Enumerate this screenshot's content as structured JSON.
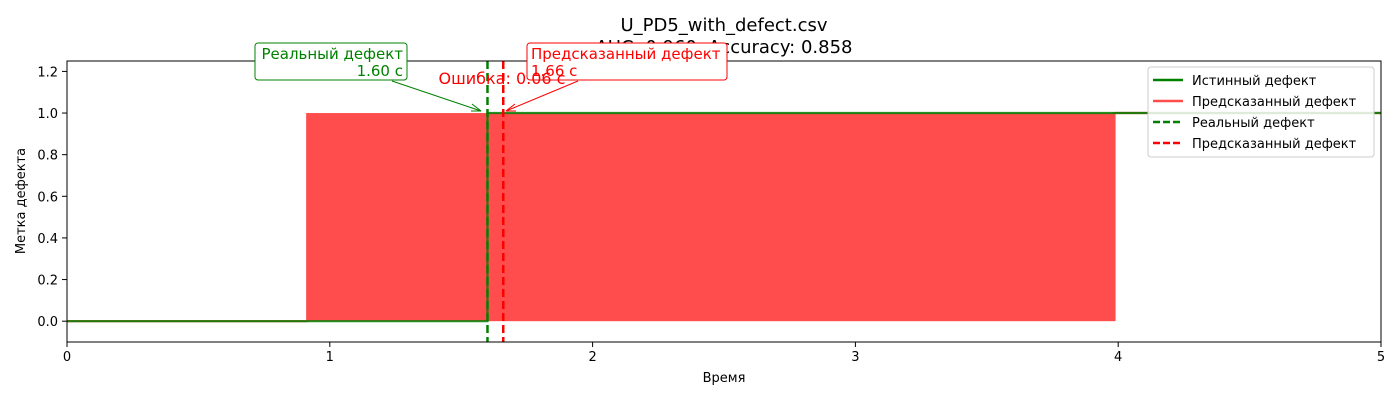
{
  "chart_data": {
    "type": "line",
    "title": "U_PD5_with_defect.csv",
    "subtitle": "AUC: 0.960, Accuracy: 0.858",
    "xlabel": "Время",
    "ylabel": "Метка дефекта",
    "xlim": [
      0,
      5
    ],
    "ylim": [
      -0.1,
      1.25
    ],
    "xticks": [
      0,
      1,
      2,
      3,
      4,
      5
    ],
    "xtick_labels": [
      "0",
      "1",
      "2",
      "3",
      "4",
      "5"
    ],
    "yticks": [
      0.0,
      0.2,
      0.4,
      0.6,
      0.8,
      1.0,
      1.2
    ],
    "ytick_labels": [
      "0.0",
      "0.2",
      "0.4",
      "0.6",
      "0.8",
      "1.0",
      "1.2"
    ],
    "grid": false,
    "legend_position": "top-right",
    "series": [
      {
        "name": "Истинный дефект",
        "style": "solid",
        "color": "#008000",
        "x": [
          0,
          1.6,
          1.6,
          5
        ],
        "y": [
          0,
          0,
          1,
          1
        ]
      },
      {
        "name": "Предсказанный дефект",
        "style": "solid",
        "color": "#ff4c4c",
        "flicker_region": {
          "x_start": 0.91,
          "x_end": 3.99,
          "y_low": 0,
          "y_high": 1
        },
        "x": [
          0,
          0.91,
          3.99,
          5
        ],
        "y": [
          0,
          0,
          1,
          1
        ]
      }
    ],
    "vlines": [
      {
        "name": "Реальный дефект",
        "x": 1.6,
        "style": "dashed",
        "color": "#008000"
      },
      {
        "name": "Предсказанный дефект",
        "x": 1.66,
        "style": "dashed",
        "color": "#ff0000"
      }
    ],
    "annotations": [
      {
        "id": "real",
        "line1": "Реальный дефект",
        "line2": "1.60 с",
        "x": 1.6,
        "y": 1.0,
        "color": "#008000"
      },
      {
        "id": "pred",
        "line1": "Предсказанный дефект",
        "line2": "1.66 с",
        "x": 1.66,
        "y": 1.0,
        "color": "#ff0000"
      },
      {
        "id": "error",
        "text": "Ошибка: 0.06 с",
        "color": "#ff0000"
      }
    ]
  }
}
